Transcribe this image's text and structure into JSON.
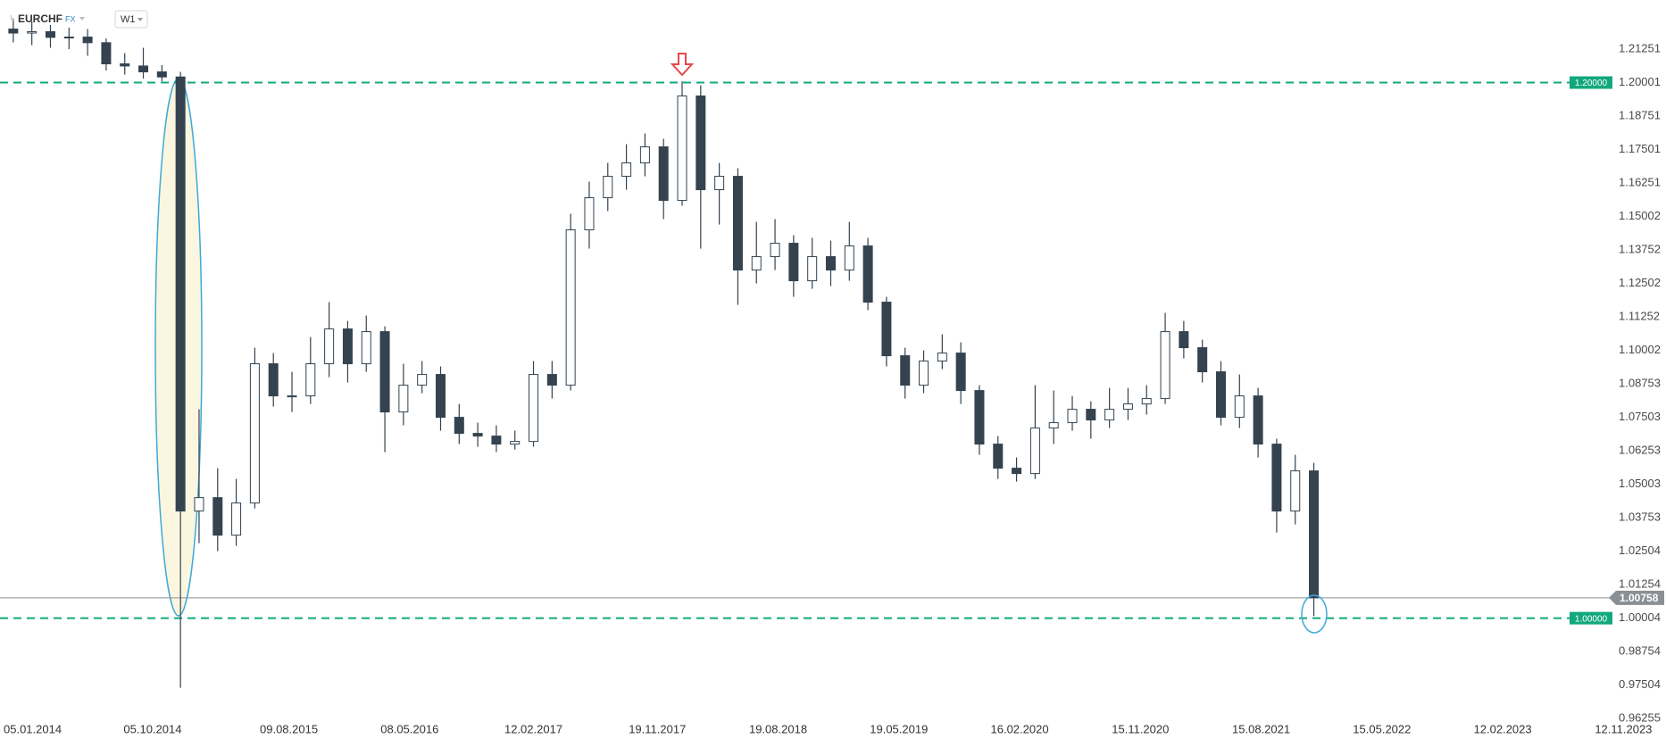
{
  "header": {
    "symbol": "EURCHF",
    "market": "FX",
    "interval": "W1"
  },
  "chart_data": {
    "type": "candlestick",
    "up_color": "#ffffff",
    "down_color": "#34434f",
    "outline_color": "#34434f",
    "x": [
      "24.11.2013",
      "05.01.2014",
      "16.02.2014",
      "30.03.2014",
      "11.05.2014",
      "22.06.2014",
      "03.08.2014",
      "14.09.2014",
      "26.10.2014",
      "07.12.2014",
      "18.01.2015",
      "01.03.2015",
      "12.04.2015",
      "24.05.2015",
      "05.07.2015",
      "16.08.2015",
      "27.09.2015",
      "08.11.2015",
      "20.12.2015",
      "31.01.2016",
      "13.03.2016",
      "24.04.2016",
      "05.06.2016",
      "17.07.2016",
      "28.08.2016",
      "09.10.2016",
      "20.11.2016",
      "01.01.2017",
      "12.02.2017",
      "26.03.2017",
      "07.05.2017",
      "18.06.2017",
      "30.07.2017",
      "10.09.2017",
      "22.10.2017",
      "03.12.2017",
      "14.01.2018",
      "25.02.2018",
      "08.04.2018",
      "20.05.2018",
      "01.07.2018",
      "12.08.2018",
      "23.09.2018",
      "04.11.2018",
      "16.12.2018",
      "27.01.2019",
      "10.03.2019",
      "21.04.2019",
      "02.06.2019",
      "14.07.2019",
      "25.08.2019",
      "06.10.2019",
      "17.11.2019",
      "29.12.2019",
      "09.02.2020",
      "22.03.2020",
      "03.05.2020",
      "14.06.2020",
      "26.07.2020",
      "06.09.2020",
      "18.10.2020",
      "29.11.2020",
      "10.01.2021",
      "21.02.2021",
      "04.04.2021",
      "16.05.2021",
      "27.06.2021",
      "08.08.2021",
      "19.09.2021",
      "31.10.2021",
      "12.12.2021"
    ],
    "open": [
      1.22,
      1.2185,
      1.219,
      1.2169,
      1.217,
      1.2149,
      1.207,
      1.2062,
      1.204,
      1.2021,
      1.04,
      1.045,
      1.031,
      1.043,
      1.095,
      1.083,
      1.083,
      1.095,
      1.108,
      1.095,
      1.107,
      1.077,
      1.087,
      1.091,
      1.075,
      1.069,
      1.068,
      1.065,
      1.066,
      1.091,
      1.087,
      1.145,
      1.157,
      1.165,
      1.17,
      1.176,
      1.156,
      1.195,
      1.16,
      1.165,
      1.13,
      1.135,
      1.14,
      1.126,
      1.135,
      1.13,
      1.139,
      1.118,
      1.098,
      1.087,
      1.096,
      1.099,
      1.085,
      1.065,
      1.056,
      1.054,
      1.071,
      1.073,
      1.078,
      1.074,
      1.078,
      1.08,
      1.082,
      1.107,
      1.101,
      1.092,
      1.075,
      1.083,
      1.065,
      1.04,
      1.055
    ],
    "high": [
      1.2235,
      1.223,
      1.2215,
      1.2205,
      1.22,
      1.2165,
      1.211,
      1.213,
      1.2065,
      1.204,
      1.078,
      1.056,
      1.052,
      1.101,
      1.099,
      1.092,
      1.105,
      1.118,
      1.111,
      1.113,
      1.109,
      1.095,
      1.096,
      1.094,
      1.08,
      1.073,
      1.072,
      1.07,
      1.096,
      1.096,
      1.151,
      1.163,
      1.17,
      1.177,
      1.181,
      1.179,
      1.2005,
      1.199,
      1.17,
      1.168,
      1.148,
      1.149,
      1.143,
      1.142,
      1.141,
      1.148,
      1.142,
      1.12,
      1.101,
      1.1,
      1.106,
      1.103,
      1.087,
      1.068,
      1.06,
      1.087,
      1.085,
      1.083,
      1.081,
      1.086,
      1.086,
      1.087,
      1.114,
      1.111,
      1.104,
      1.096,
      1.091,
      1.086,
      1.067,
      1.061,
      1.058
    ],
    "low": [
      1.215,
      1.214,
      1.213,
      1.2125,
      1.21,
      1.2045,
      1.203,
      1.2015,
      1.2005,
      0.974,
      1.028,
      1.025,
      1.027,
      1.041,
      1.079,
      1.077,
      1.08,
      1.09,
      1.088,
      1.092,
      1.062,
      1.072,
      1.084,
      1.07,
      1.065,
      1.064,
      1.062,
      1.063,
      1.064,
      1.082,
      1.085,
      1.138,
      1.152,
      1.16,
      1.165,
      1.149,
      1.154,
      1.138,
      1.147,
      1.117,
      1.125,
      1.13,
      1.12,
      1.123,
      1.124,
      1.126,
      1.115,
      1.094,
      1.082,
      1.084,
      1.093,
      1.08,
      1.061,
      1.052,
      1.051,
      1.052,
      1.065,
      1.07,
      1.067,
      1.071,
      1.074,
      1.076,
      1.08,
      1.097,
      1.088,
      1.072,
      1.071,
      1.06,
      1.032,
      1.035,
      1.0008
    ],
    "close": [
      1.2185,
      1.219,
      1.2169,
      1.217,
      1.2149,
      1.207,
      1.2062,
      1.204,
      1.2021,
      1.04,
      1.045,
      1.031,
      1.043,
      1.095,
      1.083,
      1.083,
      1.095,
      1.108,
      1.095,
      1.107,
      1.077,
      1.087,
      1.091,
      1.075,
      1.069,
      1.068,
      1.065,
      1.066,
      1.091,
      1.087,
      1.145,
      1.157,
      1.165,
      1.17,
      1.176,
      1.156,
      1.195,
      1.16,
      1.165,
      1.13,
      1.135,
      1.14,
      1.126,
      1.135,
      1.13,
      1.139,
      1.118,
      1.098,
      1.087,
      1.096,
      1.099,
      1.085,
      1.065,
      1.056,
      1.054,
      1.071,
      1.073,
      1.078,
      1.074,
      1.078,
      1.08,
      1.082,
      1.107,
      1.101,
      1.092,
      1.075,
      1.083,
      1.065,
      1.04,
      1.055,
      1.00758
    ],
    "xlim": [
      "25.10.2013",
      "14.10.2023"
    ],
    "xticks": [
      "05.01.2014",
      "05.10.2014",
      "09.08.2015",
      "08.05.2016",
      "12.02.2017",
      "19.11.2017",
      "19.08.2018",
      "19.05.2019",
      "16.02.2020",
      "15.11.2020",
      "15.08.2021",
      "15.05.2022",
      "12.02.2023",
      "12.11.2023"
    ],
    "ylim": [
      0.96155,
      1.23084
    ],
    "yticks": [
      1.21251,
      1.20001,
      1.18751,
      1.17501,
      1.16251,
      1.15002,
      1.13752,
      1.12502,
      1.11252,
      1.10002,
      1.08753,
      1.07503,
      1.06253,
      1.05003,
      1.03753,
      1.02504,
      1.01254,
      1.00004,
      0.98754,
      0.97504,
      0.96255
    ],
    "hlines": [
      {
        "value": 1.2,
        "label": "1.20000"
      },
      {
        "value": 1.0,
        "label": "1.00000"
      }
    ],
    "hline_color": "#12a87e",
    "last_price_color": "#8a8f94",
    "grid": false
  }
}
